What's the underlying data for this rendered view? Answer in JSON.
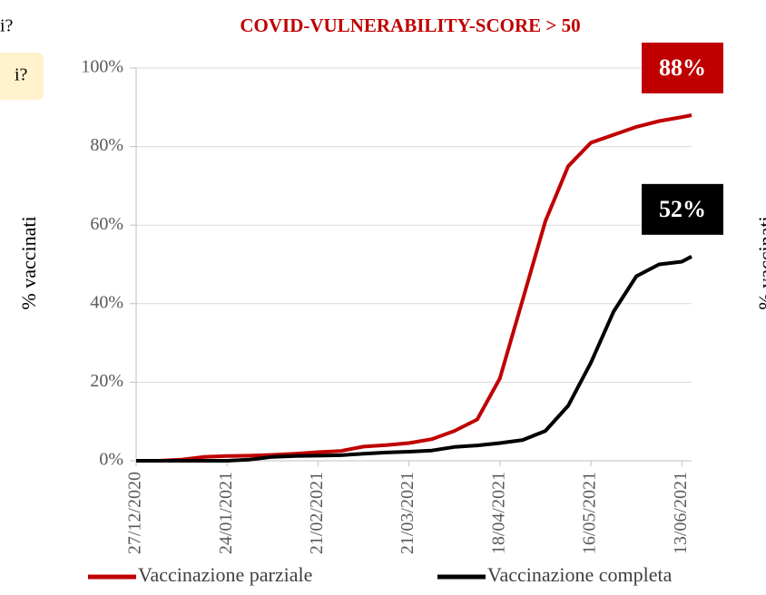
{
  "cropped_texts": {
    "top_left": "i?",
    "box_left": "i?",
    "right_axis_label": "% vaccinati"
  },
  "chart_data": {
    "type": "line",
    "title": "COVID-VULNERABILITY-SCORE > 50",
    "y_label": "% vaccinati",
    "x": [
      "27/12/2020",
      "03/01/2021",
      "10/01/2021",
      "17/01/2021",
      "24/01/2021",
      "31/01/2021",
      "07/02/2021",
      "14/02/2021",
      "21/02/2021",
      "28/02/2021",
      "07/03/2021",
      "14/03/2021",
      "21/03/2021",
      "28/03/2021",
      "04/04/2021",
      "11/04/2021",
      "18/04/2021",
      "25/04/2021",
      "02/05/2021",
      "09/05/2021",
      "16/05/2021",
      "23/05/2021",
      "30/05/2021",
      "06/06/2021",
      "13/06/2021",
      "16/06/2021"
    ],
    "xlim": [
      "27/12/2020",
      "16/06/2021"
    ],
    "xticks": [
      "27/12/2020",
      "24/01/2021",
      "21/02/2021",
      "21/03/2021",
      "18/04/2021",
      "16/05/2021",
      "13/06/2021"
    ],
    "ylim": [
      0,
      100
    ],
    "yticks": [
      {
        "value": 0,
        "label": "0%"
      },
      {
        "value": 20,
        "label": "20%"
      },
      {
        "value": 40,
        "label": "40%"
      },
      {
        "value": 60,
        "label": "60%"
      },
      {
        "value": 80,
        "label": "80%"
      },
      {
        "value": 100,
        "label": "100%"
      }
    ],
    "grid": true,
    "legend": "bottom",
    "series": [
      {
        "name": "Vaccinazione parziale",
        "color": "#c00000",
        "values": [
          0,
          0,
          0.3,
          1,
          1.2,
          1.3,
          1.5,
          1.8,
          2.2,
          2.5,
          3.6,
          4,
          4.5,
          5.5,
          7.6,
          10.5,
          21,
          41,
          61,
          75,
          81,
          83,
          85,
          86.5,
          87.5,
          88
        ],
        "value_labels": [
          null,
          null,
          null,
          null,
          null,
          null,
          null,
          null,
          null,
          null,
          null,
          null,
          null,
          null,
          null,
          null,
          null,
          null,
          null,
          null,
          null,
          null,
          null,
          null,
          null,
          "88%"
        ]
      },
      {
        "name": "Vaccinazione completa",
        "color": "#000000",
        "values": [
          0,
          0,
          0,
          0,
          0,
          0.3,
          1,
          1.2,
          1.3,
          1.4,
          1.8,
          2.1,
          2.3,
          2.6,
          3.5,
          3.9,
          4.5,
          5.3,
          7.6,
          14,
          25,
          38,
          47,
          50,
          50.7,
          52
        ],
        "value_labels": [
          null,
          null,
          null,
          null,
          null,
          null,
          null,
          null,
          null,
          null,
          null,
          null,
          null,
          null,
          null,
          null,
          null,
          null,
          null,
          null,
          null,
          null,
          null,
          null,
          null,
          "52%"
        ]
      }
    ]
  }
}
